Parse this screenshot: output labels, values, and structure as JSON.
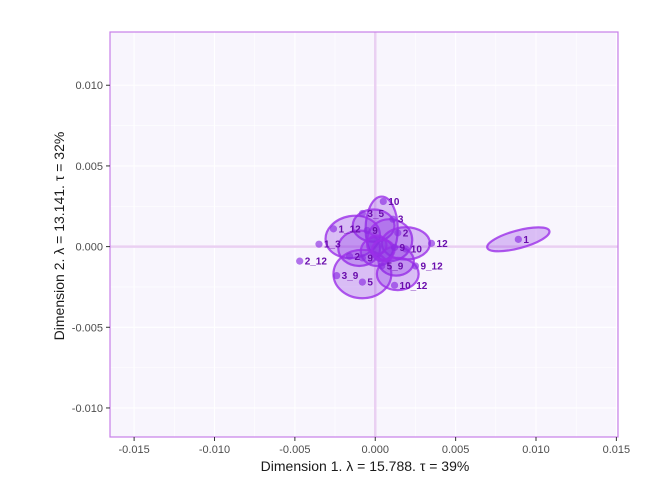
{
  "chart_data": {
    "type": "scatter",
    "title": "",
    "xlabel": "Dimension 1.   λ = 15.788.  τ = 39%",
    "ylabel": "Dimension 2.   λ = 13.141.  τ = 32%",
    "xlim": [
      -0.0165,
      0.0151
    ],
    "ylim": [
      -0.0118,
      0.0133
    ],
    "xticks": [
      -0.015,
      -0.01,
      -0.005,
      0.0,
      0.005,
      0.01,
      0.015
    ],
    "xtick_labels": [
      "-0.015",
      "-0.010",
      "-0.005",
      "0.000",
      "0.005",
      "0.010",
      "0.015"
    ],
    "yticks": [
      -0.01,
      -0.005,
      0.0,
      0.005,
      0.01
    ],
    "ytick_labels": [
      "-0.010",
      "-0.005",
      "0.000",
      "0.005",
      "0.010"
    ],
    "grid": true,
    "legend": "none",
    "colors": {
      "panel_bg": "#f8f5fd",
      "panel_border": "#c77ee8",
      "grid": "#ffffff",
      "zero_lines": "#ead0f2",
      "ellipse_fill": "#8a2be2",
      "ellipse_stroke": "#9b30e8",
      "point": "#8a2be2",
      "label": "#6a0dad"
    },
    "points": [
      {
        "label": "1",
        "x": 0.0089,
        "y": 0.00045
      },
      {
        "label": "10",
        "x": 0.0005,
        "y": 0.0028
      },
      {
        "label": "3_5",
        "x": -0.0008,
        "y": 0.00205
      },
      {
        "label": "3",
        "x": 0.0011,
        "y": 0.0017
      },
      {
        "label": "1_12",
        "x": -0.0026,
        "y": 0.0011
      },
      {
        "label": "9",
        "x": -0.0005,
        "y": 0.001
      },
      {
        "label": "2",
        "x": 0.0014,
        "y": 0.00085
      },
      {
        "label": "1_3",
        "x": -0.0035,
        "y": 0.00015
      },
      {
        "label": "9",
        "x": 0.0012,
        "y": -5e-05
      },
      {
        "label": "10",
        "x": 0.0019,
        "y": -0.00015
      },
      {
        "label": "12",
        "x": 0.0035,
        "y": 0.0002
      },
      {
        "label": "2",
        "x": -0.0016,
        "y": -0.0006
      },
      {
        "label": "9",
        "x": -0.0008,
        "y": -0.0007
      },
      {
        "label": "2_12",
        "x": -0.0047,
        "y": -0.0009
      },
      {
        "label": "5_9",
        "x": 0.0004,
        "y": -0.0012
      },
      {
        "label": "9_12",
        "x": 0.0025,
        "y": -0.0012
      },
      {
        "label": "3_9",
        "x": -0.0024,
        "y": -0.0018
      },
      {
        "label": "5",
        "x": -0.0008,
        "y": -0.0022
      },
      {
        "label": "10_12",
        "x": 0.0012,
        "y": -0.0024
      }
    ],
    "ellipses": [
      {
        "cx": 0.0089,
        "cy": 0.00045,
        "rx": 0.002,
        "ry": 0.00055,
        "angle": 15
      },
      {
        "cx": 0.0004,
        "cy": 0.0011,
        "rx": 0.001,
        "ry": 0.002,
        "angle": 0
      },
      {
        "cx": -0.0001,
        "cy": 0.0013,
        "rx": 0.0013,
        "ry": 0.001,
        "angle": 0
      },
      {
        "cx": -0.0014,
        "cy": 0.0006,
        "rx": 0.0017,
        "ry": 0.0013,
        "angle": 10
      },
      {
        "cx": 0.0009,
        "cy": 0.0004,
        "rx": 0.0014,
        "ry": 0.0013,
        "angle": 0
      },
      {
        "cx": 0.0019,
        "cy": 0.0002,
        "rx": 0.0015,
        "ry": 0.001,
        "angle": 0
      },
      {
        "cx": -0.001,
        "cy": -0.0001,
        "rx": 0.0013,
        "ry": 0.0011,
        "angle": 0
      },
      {
        "cx": 0.0001,
        "cy": -0.0003,
        "rx": 0.001,
        "ry": 0.0009,
        "angle": 0
      },
      {
        "cx": 0.0013,
        "cy": -0.0009,
        "rx": 0.0011,
        "ry": 0.0009,
        "angle": 0
      },
      {
        "cx": -0.0008,
        "cy": -0.0017,
        "rx": 0.0018,
        "ry": 0.0015,
        "angle": 0
      },
      {
        "cx": 0.0014,
        "cy": -0.0017,
        "rx": 0.0013,
        "ry": 0.001,
        "angle": 0
      },
      {
        "cx": 0.0001,
        "cy": 0.0001,
        "rx": 0.0006,
        "ry": 0.0006,
        "angle": 0
      },
      {
        "cx": 0.0005,
        "cy": -0.0002,
        "rx": 0.0007,
        "ry": 0.0006,
        "angle": 0
      }
    ]
  }
}
